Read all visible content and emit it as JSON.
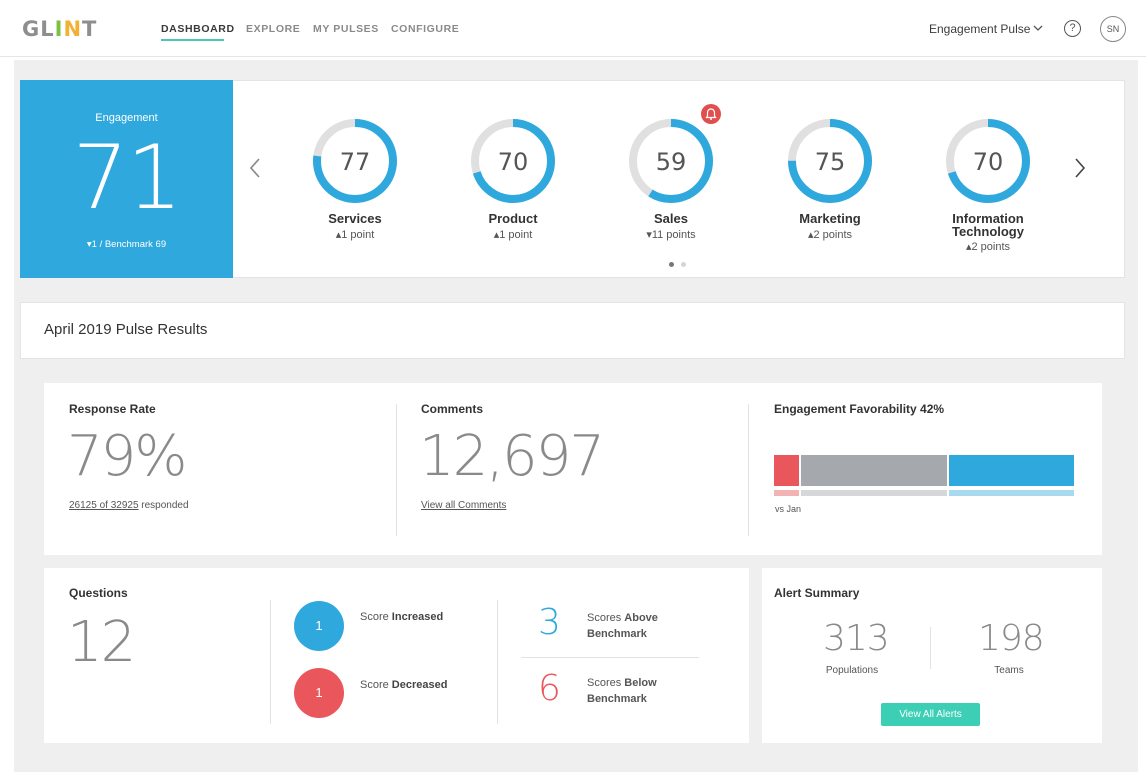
{
  "nav": {
    "logo": "GLINT",
    "tabs": [
      "DASHBOARD",
      "EXPLORE",
      "MY PULSES",
      "CONFIGURE"
    ],
    "active_tab": "DASHBOARD",
    "pulse_selector": "Engagement Pulse",
    "help": "?",
    "avatar": "SN"
  },
  "engagement": {
    "label": "Engagement",
    "score": "71",
    "benchmark": "▾1 / Benchmark 69"
  },
  "departments": [
    {
      "name": "Services",
      "score": "77",
      "change": "▴1 point",
      "fraction": 0.77
    },
    {
      "name": "Product",
      "score": "70",
      "change": "▴1 point",
      "fraction": 0.7
    },
    {
      "name": "Sales",
      "score": "59",
      "change": "▾11 points",
      "fraction": 0.59
    },
    {
      "name": "Marketing",
      "score": "75",
      "change": "▴2 points",
      "fraction": 0.75
    },
    {
      "name": "Information Technology",
      "name_line1": "Information",
      "name_line2": "Technology",
      "score": "70",
      "change": "▴2 points",
      "fraction": 0.7
    }
  ],
  "pulse_results": {
    "title": "April 2019 Pulse Results"
  },
  "response_rate": {
    "title": "Response Rate",
    "value": "79%",
    "responded_link": "26125 of 32925",
    "responded_suffix": " responded"
  },
  "comments": {
    "title": "Comments",
    "value": "12,697",
    "link": "View all Comments"
  },
  "favorability": {
    "title": "Engagement Favorability 42%",
    "compare": "vs Jan",
    "segments": [
      0.09,
      0.49,
      0.42
    ],
    "colors": [
      "#e9575c",
      "#a5a8ac",
      "#2fa9dd"
    ]
  },
  "questions": {
    "title": "Questions",
    "value": "12",
    "increased_count": "1",
    "increased_prefix": "Score ",
    "increased_bold": "Increased",
    "decreased_count": "1",
    "decreased_prefix": "Score ",
    "decreased_bold": "Decreased",
    "above_count": "3",
    "above_prefix": "Scores ",
    "above_bold1": "Above",
    "above_bold2": "Benchmark",
    "below_count": "6",
    "below_prefix": "Scores ",
    "below_bold1": "Below",
    "below_bold2": "Benchmark"
  },
  "alerts": {
    "title": "Alert Summary",
    "populations_count": "313",
    "populations_label": "Populations",
    "teams_count": "198",
    "teams_label": "Teams",
    "button": "View All Alerts"
  },
  "colors": {
    "blue": "#2fa9dd",
    "red": "#e9575c",
    "teal": "#3ccfb5",
    "ring_track": "#e0e0e0"
  }
}
